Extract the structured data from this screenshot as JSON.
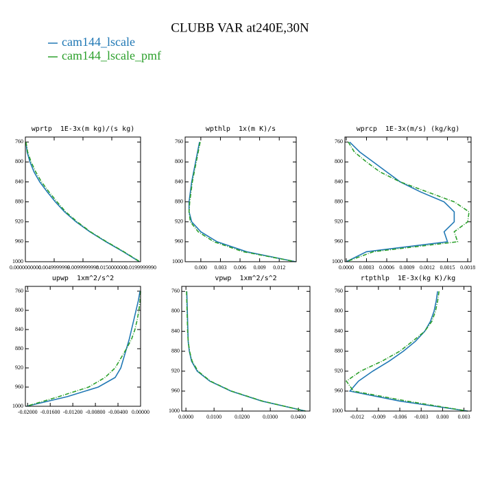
{
  "title": "CLUBB VAR at240E,30N",
  "chart_data": [
    {
      "type": "line",
      "title": "wprtp  1E-3x(m kg)/(s kg)",
      "levels": [
        760,
        780,
        800,
        820,
        840,
        860,
        880,
        900,
        920,
        940,
        960,
        980,
        1000
      ],
      "series": [
        {
          "name": "cam144_lscale",
          "color": "#1f77b4",
          "values": [
            0.0001,
            0.0003,
            0.0008,
            0.0015,
            0.0025,
            0.0038,
            0.0052,
            0.0068,
            0.0088,
            0.0112,
            0.014,
            0.017,
            0.0198
          ]
        },
        {
          "name": "cam144_lscale_pmf",
          "color": "#2ca02c",
          "values": [
            0.0001,
            0.0004,
            0.001,
            0.0018,
            0.0028,
            0.0041,
            0.0055,
            0.007,
            0.009,
            0.0113,
            0.0141,
            0.0171,
            0.0199
          ]
        }
      ],
      "xlim": [
        0,
        0.02
      ],
      "xticks": [
        {
          "value": 0,
          "label": "0.0000000000"
        },
        {
          "value": 0.005,
          "label": "0.0049999999"
        },
        {
          "value": 0.01,
          "label": "0.0099999998"
        },
        {
          "value": 0.015,
          "label": "0.0150000000"
        },
        {
          "value": 0.02,
          "label": "0.0199999990"
        }
      ],
      "ylim": [
        1000,
        750
      ],
      "yticks": [
        760,
        800,
        840,
        880,
        920,
        960,
        1000
      ]
    },
    {
      "type": "line",
      "title": "wpthlp  1x(m K)/s",
      "levels": [
        760,
        780,
        800,
        820,
        840,
        860,
        880,
        900,
        920,
        940,
        960,
        980,
        1000
      ],
      "series": [
        {
          "name": "cam144_lscale",
          "color": "#1f77b4",
          "values": [
            -0.0002,
            -0.0005,
            -0.0008,
            -0.0011,
            -0.0014,
            -0.0016,
            -0.0018,
            -0.0018,
            -0.0014,
            0.0,
            0.0025,
            0.007,
            0.0145
          ]
        },
        {
          "name": "cam144_lscale_pmf",
          "color": "#2ca02c",
          "values": [
            -0.0001,
            -0.0004,
            -0.0007,
            -0.001,
            -0.0013,
            -0.0015,
            -0.0017,
            -0.0018,
            -0.0016,
            -0.0004,
            0.002,
            0.0065,
            0.0145
          ]
        }
      ],
      "xlim": [
        -0.0024,
        0.0146
      ],
      "xticks": [
        {
          "value": 0,
          "label": "0.000"
        },
        {
          "value": 0.003,
          "label": "0.003"
        },
        {
          "value": 0.006,
          "label": "0.006"
        },
        {
          "value": 0.009,
          "label": "0.009"
        },
        {
          "value": 0.012,
          "label": "0.012"
        }
      ],
      "ylim": [
        1000,
        750
      ],
      "yticks": [
        760,
        800,
        840,
        880,
        920,
        960,
        1000
      ]
    },
    {
      "type": "line",
      "title": "wprcp  1E-3x(m/s) (kg/kg)",
      "levels": [
        760,
        780,
        800,
        820,
        840,
        860,
        880,
        900,
        920,
        940,
        960,
        980,
        1000
      ],
      "series": [
        {
          "name": "cam144_lscale",
          "color": "#1f77b4",
          "values": [
            5e-05,
            0.0002,
            0.0004,
            0.0006,
            0.0008,
            0.0011,
            0.00145,
            0.0016,
            0.0016,
            0.00145,
            0.0015,
            0.0003,
            0.0
          ]
        },
        {
          "name": "cam144_lscale_pmf",
          "color": "#2ca02c",
          "values": [
            3e-05,
            0.00012,
            0.0003,
            0.0005,
            0.0008,
            0.0012,
            0.0016,
            0.00182,
            0.0018,
            0.0016,
            0.00165,
            0.0004,
            0.0
          ]
        }
      ],
      "xlim": [
        -2e-05,
        0.00185
      ],
      "xticks": [
        {
          "value": 0,
          "label": "0.0000"
        },
        {
          "value": 0.0003,
          "label": "0.0003"
        },
        {
          "value": 0.0006,
          "label": "0.0006"
        },
        {
          "value": 0.0009,
          "label": "0.0009"
        },
        {
          "value": 0.0012,
          "label": "0.0012"
        },
        {
          "value": 0.0015,
          "label": "0.0015"
        },
        {
          "value": 0.0018,
          "label": "0.0018"
        }
      ],
      "ylim": [
        1000,
        750
      ],
      "yticks": [
        760,
        800,
        840,
        880,
        920,
        960,
        1000
      ]
    },
    {
      "type": "line",
      "title": "upwp  1xm^2/s^2",
      "levels": [
        760,
        780,
        800,
        820,
        840,
        860,
        880,
        900,
        920,
        940,
        960,
        980,
        1000
      ],
      "series": [
        {
          "name": "cam144_lscale",
          "color": "#1f77b4",
          "values": [
            -0.0001,
            -0.0004,
            -0.0008,
            -0.0012,
            -0.0016,
            -0.002,
            -0.0025,
            -0.003,
            -0.0035,
            -0.0045,
            -0.0075,
            -0.013,
            -0.0202
          ]
        },
        {
          "name": "cam144_lscale_pmf",
          "color": "#2ca02c",
          "values": [
            0.0,
            -0.0001,
            -0.0003,
            -0.0006,
            -0.001,
            -0.0016,
            -0.0025,
            -0.0035,
            -0.0045,
            -0.0063,
            -0.0092,
            -0.0145,
            -0.0202
          ]
        }
      ],
      "xlim": [
        -0.0204,
        0
      ],
      "xticks": [
        {
          "value": -0.02,
          "label": "-0.02000"
        },
        {
          "value": -0.016,
          "label": "-0.01600"
        },
        {
          "value": -0.012,
          "label": "-0.01200"
        },
        {
          "value": -0.008,
          "label": "-0.00800"
        },
        {
          "value": -0.004,
          "label": "-0.00400"
        },
        {
          "value": 0,
          "label": "0.00000"
        }
      ],
      "ylim": [
        1000,
        750
      ],
      "yticks": [
        760,
        800,
        840,
        880,
        920,
        960,
        1000
      ]
    },
    {
      "type": "line",
      "title": "vpwp  1xm^2/s^2",
      "levels": [
        760,
        780,
        800,
        820,
        840,
        860,
        880,
        900,
        920,
        940,
        960,
        980,
        1000
      ],
      "series": [
        {
          "name": "cam144_lscale",
          "color": "#1f77b4",
          "values": [
            0.0003,
            0.0004,
            0.0005,
            0.0006,
            0.0007,
            0.0008,
            0.0012,
            0.002,
            0.004,
            0.0085,
            0.016,
            0.027,
            0.0425
          ]
        },
        {
          "name": "cam144_lscale_pmf",
          "color": "#2ca02c",
          "values": [
            0.0002,
            0.0003,
            0.0004,
            0.0005,
            0.0006,
            0.0008,
            0.0013,
            0.0022,
            0.0043,
            0.0087,
            0.0162,
            0.0272,
            0.0425
          ]
        }
      ],
      "xlim": [
        -0.0015,
        0.0441
      ],
      "xticks": [
        {
          "value": 0,
          "label": "0.0000"
        },
        {
          "value": 0.01,
          "label": "0.0100"
        },
        {
          "value": 0.02,
          "label": "0.0200"
        },
        {
          "value": 0.03,
          "label": "0.0300"
        },
        {
          "value": 0.04,
          "label": "0.0400"
        }
      ],
      "ylim": [
        1000,
        750
      ],
      "yticks": [
        760,
        800,
        840,
        880,
        920,
        960,
        1000
      ]
    },
    {
      "type": "line",
      "title": "rtpthlp  1E-3x(kg K)/kg",
      "levels": [
        760,
        780,
        800,
        820,
        840,
        860,
        880,
        900,
        920,
        940,
        960,
        980,
        1000
      ],
      "series": [
        {
          "name": "cam144_lscale",
          "color": "#1f77b4",
          "values": [
            -0.0007,
            -0.0009,
            -0.0012,
            -0.0017,
            -0.0025,
            -0.0038,
            -0.0055,
            -0.0075,
            -0.0098,
            -0.0118,
            -0.013,
            -0.006,
            0.0035
          ]
        },
        {
          "name": "cam144_lscale_pmf",
          "color": "#2ca02c",
          "values": [
            -0.0005,
            -0.0007,
            -0.001,
            -0.0015,
            -0.0025,
            -0.0042,
            -0.006,
            -0.0085,
            -0.0115,
            -0.0135,
            -0.0125,
            -0.005,
            0.0035
          ]
        }
      ],
      "xlim": [
        -0.0137,
        0.004
      ],
      "xticks": [
        {
          "value": -0.012,
          "label": "-0.012"
        },
        {
          "value": -0.009,
          "label": "-0.009"
        },
        {
          "value": -0.006,
          "label": "-0.006"
        },
        {
          "value": -0.003,
          "label": "-0.003"
        },
        {
          "value": 0,
          "label": "0.000"
        },
        {
          "value": 0.003,
          "label": "0.003"
        }
      ],
      "ylim": [
        1000,
        750
      ],
      "yticks": [
        760,
        800,
        840,
        880,
        920,
        960,
        1000
      ]
    }
  ]
}
